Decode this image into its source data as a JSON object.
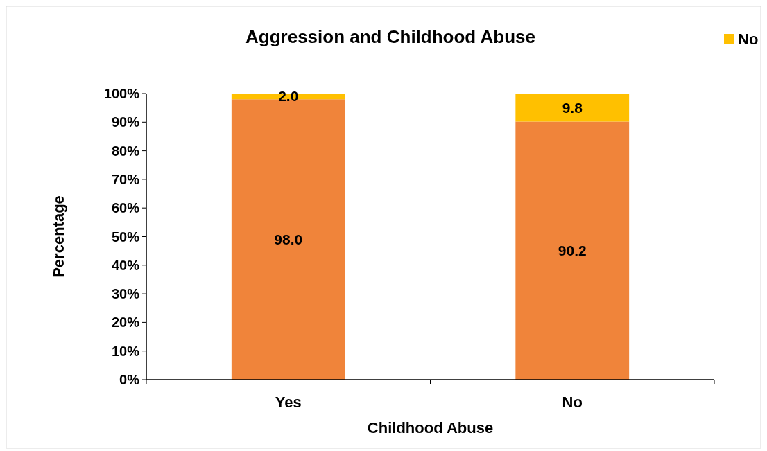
{
  "chart_data": {
    "type": "bar",
    "stacked": true,
    "title": "Aggression and Childhood Abuse",
    "xlabel": "Childhood Abuse",
    "ylabel": "Percentage",
    "categories": [
      "Yes",
      "No"
    ],
    "series": [
      {
        "color": "#f0843a",
        "values": [
          98.0,
          90.2
        ],
        "value_labels": [
          "98.0",
          "90.2"
        ]
      },
      {
        "name": "No",
        "color": "#ffc000",
        "values": [
          2.0,
          9.8
        ],
        "value_labels": [
          "2.0",
          "9.8"
        ]
      }
    ],
    "ylim": [
      0,
      100
    ],
    "yticks": [
      {
        "value": 0,
        "label": "0%"
      },
      {
        "value": 10,
        "label": "10%"
      },
      {
        "value": 20,
        "label": "20%"
      },
      {
        "value": 30,
        "label": "30%"
      },
      {
        "value": 40,
        "label": "40%"
      },
      {
        "value": 50,
        "label": "50%"
      },
      {
        "value": 60,
        "label": "60%"
      },
      {
        "value": 70,
        "label": "70%"
      },
      {
        "value": 80,
        "label": "80%"
      },
      {
        "value": 90,
        "label": "90%"
      },
      {
        "value": 100,
        "label": "100%"
      }
    ],
    "grid": false,
    "legend": "top right"
  }
}
